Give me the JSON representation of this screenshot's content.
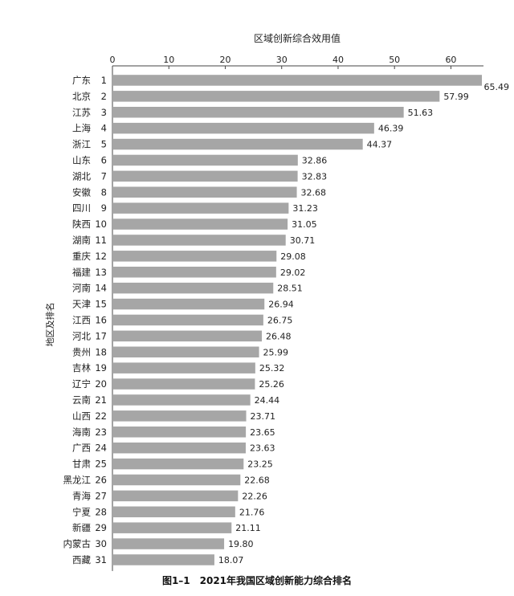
{
  "chart_data": {
    "type": "bar",
    "orientation": "horizontal",
    "title": "区域创新综合效用值",
    "ylabel": "地区及排名",
    "xlim": [
      0,
      65.49
    ],
    "xticks": [
      0,
      10,
      20,
      30,
      40,
      50,
      60
    ],
    "bar_color": "#a6a6a6",
    "categories": [
      "广东",
      "北京",
      "江苏",
      "上海",
      "浙江",
      "山东",
      "湖北",
      "安徽",
      "四川",
      "陕西",
      "湖南",
      "重庆",
      "福建",
      "河南",
      "天津",
      "江西",
      "河北",
      "贵州",
      "吉林",
      "辽宁",
      "云南",
      "山西",
      "海南",
      "广西",
      "甘肃",
      "黑龙江",
      "青海",
      "宁夏",
      "新疆",
      "内蒙古",
      "西藏"
    ],
    "ranks": [
      1,
      2,
      3,
      4,
      5,
      6,
      7,
      8,
      9,
      10,
      11,
      12,
      13,
      14,
      15,
      16,
      17,
      18,
      19,
      20,
      21,
      22,
      23,
      24,
      25,
      26,
      27,
      28,
      29,
      30,
      31
    ],
    "values": [
      65.49,
      57.99,
      51.63,
      46.39,
      44.37,
      32.86,
      32.83,
      32.68,
      31.23,
      31.05,
      30.71,
      29.08,
      29.02,
      28.51,
      26.94,
      26.75,
      26.48,
      25.99,
      25.32,
      25.26,
      24.44,
      23.71,
      23.65,
      23.63,
      23.25,
      22.68,
      22.26,
      21.76,
      21.11,
      19.8,
      18.07
    ],
    "value_labels": [
      "65.49",
      "57.99",
      "51.63",
      "46.39",
      "44.37",
      "32.86",
      "32.83",
      "32.68",
      "31.23",
      "31.05",
      "30.71",
      "29.08",
      "29.02",
      "28.51",
      "26.94",
      "26.75",
      "26.48",
      "25.99",
      "25.32",
      "25.26",
      "24.44",
      "23.71",
      "23.65",
      "23.63",
      "23.25",
      "22.68",
      "22.26",
      "21.76",
      "21.11",
      "19.80",
      "18.07"
    ]
  },
  "caption": "图1–1　2021年我国区域创新能力综合排名"
}
